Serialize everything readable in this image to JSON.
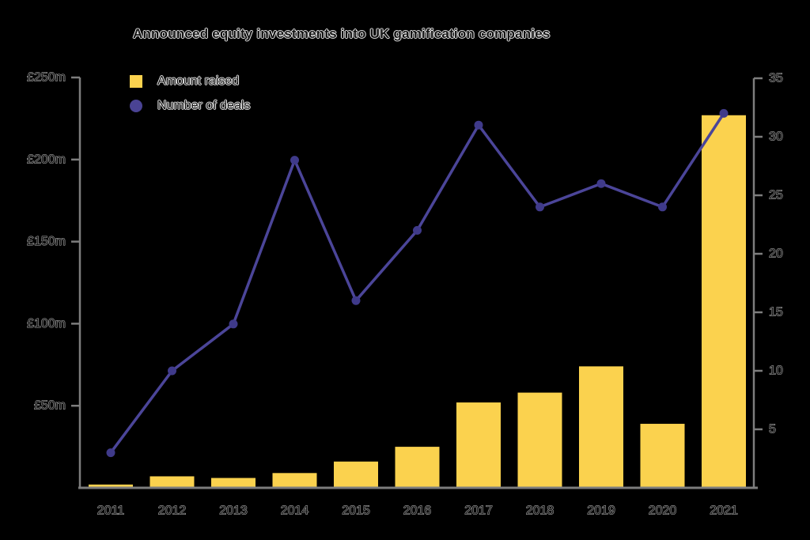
{
  "chart_data": {
    "type": "combo-bar-line",
    "title": "Announced equity investments into UK gamification companies",
    "categories": [
      "2011",
      "2012",
      "2013",
      "2014",
      "2015",
      "2016",
      "2017",
      "2018",
      "2019",
      "2020",
      "2021"
    ],
    "series": [
      {
        "name": "Amount raised",
        "chart": "bar",
        "axis": "left",
        "units": "GBP millions",
        "values": [
          2,
          7,
          6,
          9,
          16,
          25,
          52,
          58,
          74,
          39,
          227
        ]
      },
      {
        "name": "Number of deals",
        "chart": "line",
        "axis": "right",
        "units": "deals",
        "values": [
          3,
          10,
          14,
          28,
          16,
          22,
          31,
          24,
          26,
          24,
          32
        ]
      }
    ],
    "left_axis": {
      "tick_labels": [
        "£250m",
        "£200m",
        "£150m",
        "£100m",
        "£50m"
      ],
      "tick_values": [
        250,
        200,
        150,
        100,
        50
      ],
      "range": [
        0,
        250
      ]
    },
    "right_axis": {
      "tick_labels": [
        "35",
        "30",
        "25",
        "20",
        "15",
        "10",
        "5"
      ],
      "tick_values": [
        35,
        30,
        25,
        20,
        15,
        10,
        5
      ],
      "range": [
        0,
        35
      ]
    },
    "legend_position": "top-left",
    "grid": false,
    "colors": {
      "bar": "#fbd24e",
      "line": "#4b4599",
      "marker": "#3f3a8a",
      "legend_circle": "#4a4394",
      "axis": "#7d7d7d",
      "text": "#131313",
      "text_halo": "#ffffff"
    }
  }
}
